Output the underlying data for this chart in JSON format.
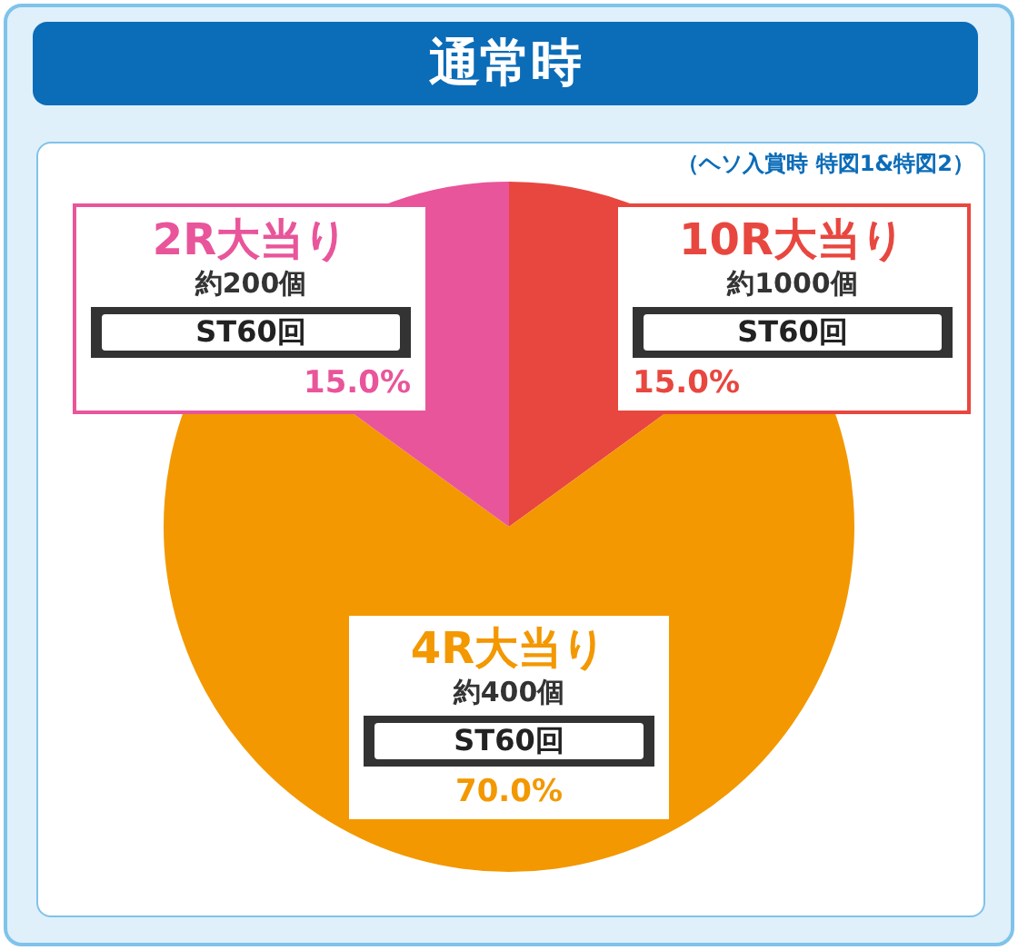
{
  "chart_data": {
    "type": "pie",
    "title": "通常時",
    "subtitle": "（ヘソ入賞時 特図1&特図2）",
    "categories": [
      "10R大当り",
      "4R大当り",
      "2R大当り"
    ],
    "values": [
      15,
      70,
      15
    ],
    "colors": [
      "#e8473f",
      "#f39800",
      "#e9559a"
    ],
    "value_labels": [
      "15.0%",
      "70.0%",
      "15.0%"
    ],
    "annotations": [
      "約1000個",
      "ST60回",
      "約400個",
      "ST60回",
      "約200個",
      "ST60回"
    ],
    "legend": false
  }
}
